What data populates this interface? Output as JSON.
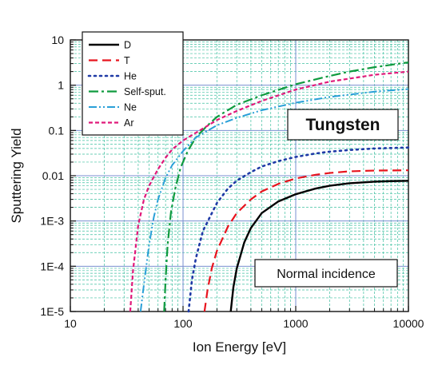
{
  "chart_data": {
    "type": "line",
    "xlabel": "Ion Energy [eV]",
    "ylabel": "Sputtering Yield",
    "x_scale": "log",
    "y_scale": "log",
    "xlim": [
      10,
      10000
    ],
    "ylim": [
      1e-05,
      10
    ],
    "x_ticks": [
      {
        "value": 10,
        "label": "10"
      },
      {
        "value": 100,
        "label": "100"
      },
      {
        "value": 1000,
        "label": "1000"
      },
      {
        "value": 10000,
        "label": "10000"
      }
    ],
    "y_ticks": [
      {
        "value": 1e-05,
        "label": "1E-5"
      },
      {
        "value": 0.0001,
        "label": "1E-4"
      },
      {
        "value": 0.001,
        "label": "1E-3"
      },
      {
        "value": 0.01,
        "label": "0.01"
      },
      {
        "value": 0.1,
        "label": "0.1"
      },
      {
        "value": 1,
        "label": "1"
      },
      {
        "value": 10,
        "label": "10"
      }
    ],
    "grid": true,
    "legend_position": "top-left",
    "annotations": {
      "material": "Tungsten",
      "incidence": "Normal incidence"
    },
    "series": [
      {
        "name": "D",
        "color": "#000000",
        "dash": "solid",
        "x": [
          265,
          280,
          300,
          350,
          400,
          500,
          700,
          1000,
          1500,
          2000,
          3000,
          5000,
          7000,
          10000
        ],
        "y": [
          1e-05,
          3.5e-05,
          9e-05,
          0.00034,
          0.0007,
          0.0015,
          0.0027,
          0.0039,
          0.0052,
          0.006,
          0.0068,
          0.0074,
          0.0076,
          0.0077
        ]
      },
      {
        "name": "T",
        "color": "#e8141e",
        "dash": "dash",
        "x": [
          155,
          165,
          180,
          200,
          250,
          300,
          400,
          500,
          700,
          1000,
          1500,
          2000,
          3000,
          5000,
          10000
        ],
        "y": [
          1e-05,
          3e-05,
          9e-05,
          0.00022,
          0.00075,
          0.0015,
          0.003,
          0.0045,
          0.0066,
          0.0087,
          0.0105,
          0.0115,
          0.0125,
          0.013,
          0.0132
        ]
      },
      {
        "name": "He",
        "color": "#1f3aa6",
        "dash": "dot",
        "x": [
          112,
          120,
          130,
          150,
          200,
          250,
          300,
          400,
          500,
          700,
          1000,
          1500,
          2000,
          3000,
          5000,
          10000
        ],
        "y": [
          1e-05,
          5e-05,
          0.00015,
          0.0006,
          0.0025,
          0.0052,
          0.0078,
          0.012,
          0.016,
          0.021,
          0.026,
          0.031,
          0.034,
          0.037,
          0.04,
          0.042
        ]
      },
      {
        "name": "Self-sput.",
        "color": "#0f9a3e",
        "dash": "dashdot",
        "x": [
          68,
          70,
          73,
          78,
          85,
          95,
          110,
          130,
          160,
          200,
          300,
          500,
          1000,
          2000,
          3000,
          5000,
          10000
        ],
        "y": [
          1e-05,
          5e-05,
          0.0003,
          0.0015,
          0.005,
          0.015,
          0.035,
          0.07,
          0.12,
          0.2,
          0.37,
          0.6,
          1.05,
          1.6,
          2.0,
          2.5,
          3.2
        ]
      },
      {
        "name": "Ne",
        "color": "#2aa0d8",
        "dash": "dashdotdot",
        "x": [
          42,
          45,
          50,
          55,
          60,
          70,
          80,
          100,
          130,
          200,
          300,
          500,
          1000,
          2000,
          5000,
          10000
        ],
        "y": [
          1e-05,
          4e-05,
          0.0003,
          0.0012,
          0.003,
          0.009,
          0.017,
          0.035,
          0.07,
          0.13,
          0.19,
          0.28,
          0.41,
          0.55,
          0.72,
          0.82
        ]
      },
      {
        "name": "Ar",
        "color": "#e0197a",
        "dash": "shortdash",
        "x": [
          34,
          36,
          40,
          45,
          50,
          60,
          70,
          80,
          100,
          150,
          200,
          300,
          500,
          1000,
          2000,
          5000,
          10000
        ],
        "y": [
          1e-05,
          8e-05,
          0.0008,
          0.003,
          0.006,
          0.014,
          0.025,
          0.038,
          0.06,
          0.11,
          0.17,
          0.27,
          0.45,
          0.8,
          1.2,
          1.7,
          2.0
        ]
      }
    ]
  }
}
